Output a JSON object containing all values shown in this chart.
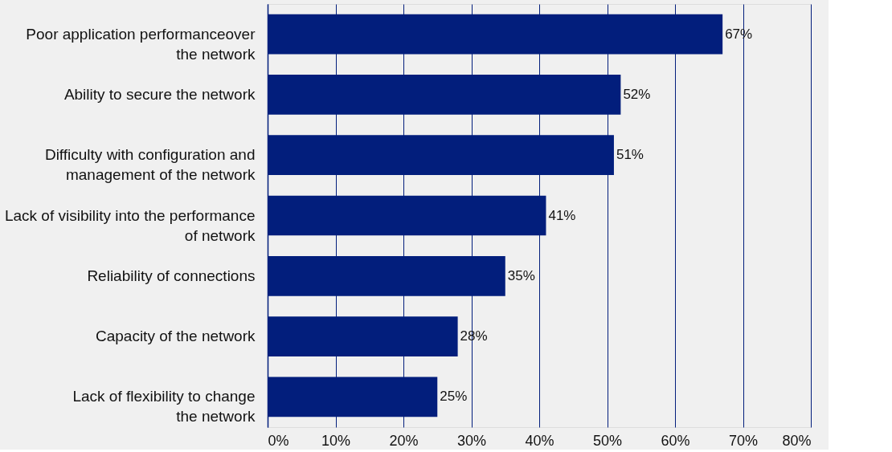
{
  "chart_data": {
    "type": "bar",
    "orientation": "horizontal",
    "categories": [
      "Poor application performanceover\nthe network",
      "Ability to secure the network",
      "Difficulty with configuration and\nmanagement of the network",
      "Lack of visibility into the performance\nof network",
      "Reliability of connections",
      "Capacity of the network",
      "Lack of flexibility to change\nthe network"
    ],
    "values": [
      67,
      52,
      51,
      41,
      35,
      28,
      25
    ],
    "value_labels": [
      "67%",
      "52%",
      "51%",
      "41%",
      "35%",
      "28%",
      "25%"
    ],
    "color": "#021e7c",
    "xlim": [
      0,
      80
    ],
    "xticks": [
      {
        "value": 0,
        "label": "0%"
      },
      {
        "value": 10,
        "label": "10%"
      },
      {
        "value": 20,
        "label": "20%"
      },
      {
        "value": 30,
        "label": "30%"
      },
      {
        "value": 40,
        "label": "40%"
      },
      {
        "value": 50,
        "label": "50%"
      },
      {
        "value": 60,
        "label": "60%"
      },
      {
        "value": 70,
        "label": "70%"
      },
      {
        "value": 80,
        "label": "80%"
      }
    ],
    "grid": "x"
  }
}
